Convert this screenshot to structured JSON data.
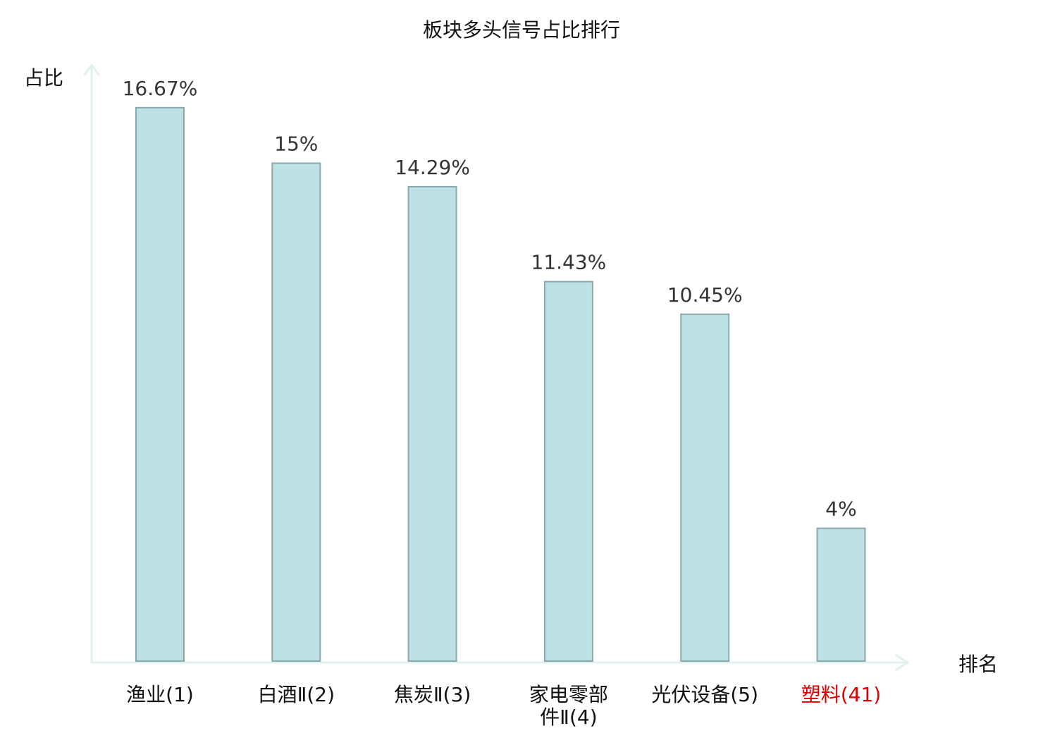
{
  "chart_data": {
    "type": "bar",
    "title": "板块多头信号占比排行",
    "ylabel": "占比",
    "xlabel": "排名",
    "ylim": [
      0,
      17.5
    ],
    "grid": false,
    "categories": [
      "渔业(1)",
      "白酒Ⅱ(2)",
      "焦炭Ⅱ(3)",
      "家电零部件Ⅱ(4)",
      "光伏设备(5)",
      "塑料(41)"
    ],
    "category_lines": [
      [
        "渔业(1)"
      ],
      [
        "白酒Ⅱ(2)"
      ],
      [
        "焦炭Ⅱ(3)"
      ],
      [
        "家电零部",
        "件Ⅱ(4)"
      ],
      [
        "光伏设备(5)"
      ],
      [
        "塑料(41)"
      ]
    ],
    "values": [
      16.67,
      15,
      14.29,
      11.43,
      10.45,
      4
    ],
    "value_labels": [
      "16.67%",
      "15%",
      "14.29%",
      "11.43%",
      "10.45%",
      "4%"
    ],
    "highlight_index": 5,
    "colors": {
      "bar_fill": "#bde1e4",
      "bar_stroke": "#8aa9ab",
      "axis": "#e0f2ef",
      "highlight_label": "#e00000"
    }
  }
}
